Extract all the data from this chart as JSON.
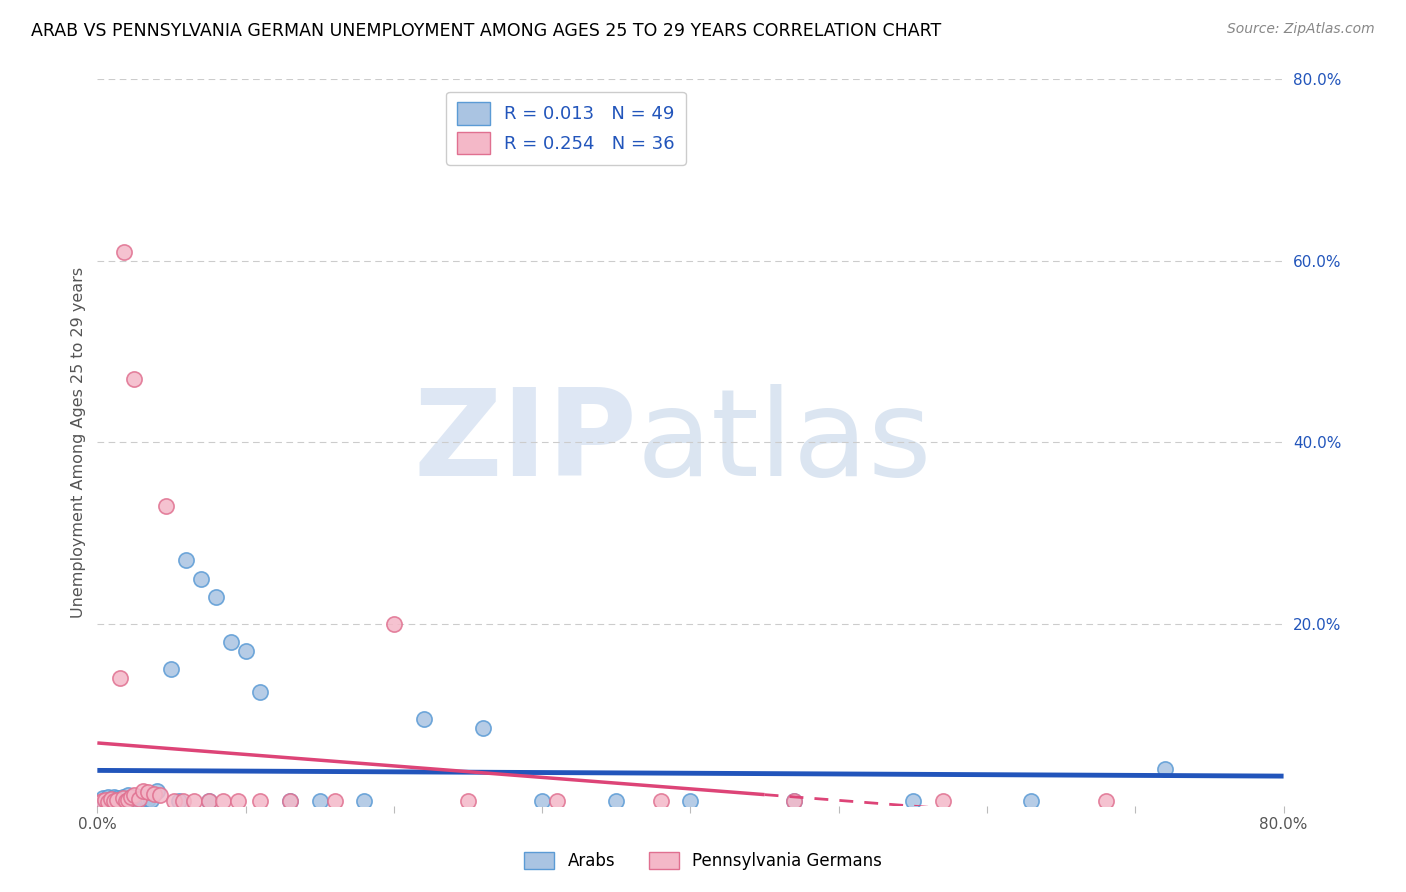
{
  "title": "ARAB VS PENNSYLVANIA GERMAN UNEMPLOYMENT AMONG AGES 25 TO 29 YEARS CORRELATION CHART",
  "source": "Source: ZipAtlas.com",
  "ylabel": "Unemployment Among Ages 25 to 29 years",
  "xlim": [
    0,
    0.8
  ],
  "ylim": [
    0,
    0.8
  ],
  "yticks_right": [
    0.0,
    0.2,
    0.4,
    0.6,
    0.8
  ],
  "ytick_labels_right": [
    "",
    "20.0%",
    "40.0%",
    "60.0%",
    "80.0%"
  ],
  "arab_color": "#aac4e2",
  "arab_edge_color": "#5b9bd5",
  "penn_color": "#f4b8c8",
  "penn_edge_color": "#e07090",
  "arab_R": 0.013,
  "arab_N": 49,
  "penn_R": 0.254,
  "penn_N": 36,
  "trend_arab_color": "#2255bb",
  "trend_penn_color": "#dd4477",
  "legend_label_arab": "Arabs",
  "legend_label_penn": "Pennsylvania Germans",
  "arab_x": [
    0.003,
    0.004,
    0.005,
    0.006,
    0.007,
    0.008,
    0.009,
    0.01,
    0.011,
    0.012,
    0.013,
    0.014,
    0.015,
    0.016,
    0.017,
    0.018,
    0.019,
    0.02,
    0.021,
    0.022,
    0.024,
    0.026,
    0.028,
    0.03,
    0.032,
    0.034,
    0.036,
    0.04,
    0.05,
    0.06,
    0.07,
    0.08,
    0.09,
    0.1,
    0.11,
    0.13,
    0.15,
    0.18,
    0.22,
    0.26,
    0.3,
    0.35,
    0.4,
    0.47,
    0.55,
    0.63,
    0.72,
    0.055,
    0.075
  ],
  "arab_y": [
    0.005,
    0.008,
    0.003,
    0.006,
    0.01,
    0.004,
    0.007,
    0.005,
    0.009,
    0.006,
    0.008,
    0.004,
    0.007,
    0.005,
    0.01,
    0.006,
    0.008,
    0.005,
    0.012,
    0.008,
    0.007,
    0.006,
    0.009,
    0.01,
    0.008,
    0.007,
    0.006,
    0.016,
    0.15,
    0.27,
    0.25,
    0.23,
    0.18,
    0.17,
    0.125,
    0.005,
    0.005,
    0.005,
    0.095,
    0.085,
    0.005,
    0.005,
    0.005,
    0.005,
    0.005,
    0.005,
    0.04,
    0.005,
    0.005
  ],
  "penn_x": [
    0.003,
    0.005,
    0.007,
    0.009,
    0.011,
    0.013,
    0.015,
    0.017,
    0.019,
    0.021,
    0.023,
    0.025,
    0.028,
    0.031,
    0.034,
    0.038,
    0.042,
    0.046,
    0.052,
    0.058,
    0.065,
    0.075,
    0.085,
    0.095,
    0.11,
    0.13,
    0.16,
    0.2,
    0.25,
    0.31,
    0.38,
    0.47,
    0.57,
    0.68,
    0.025,
    0.018
  ],
  "penn_y": [
    0.005,
    0.006,
    0.004,
    0.007,
    0.005,
    0.006,
    0.14,
    0.008,
    0.005,
    0.006,
    0.01,
    0.012,
    0.007,
    0.016,
    0.015,
    0.013,
    0.012,
    0.33,
    0.005,
    0.005,
    0.005,
    0.005,
    0.005,
    0.005,
    0.005,
    0.005,
    0.005,
    0.2,
    0.005,
    0.005,
    0.005,
    0.005,
    0.005,
    0.005,
    0.47,
    0.61
  ]
}
